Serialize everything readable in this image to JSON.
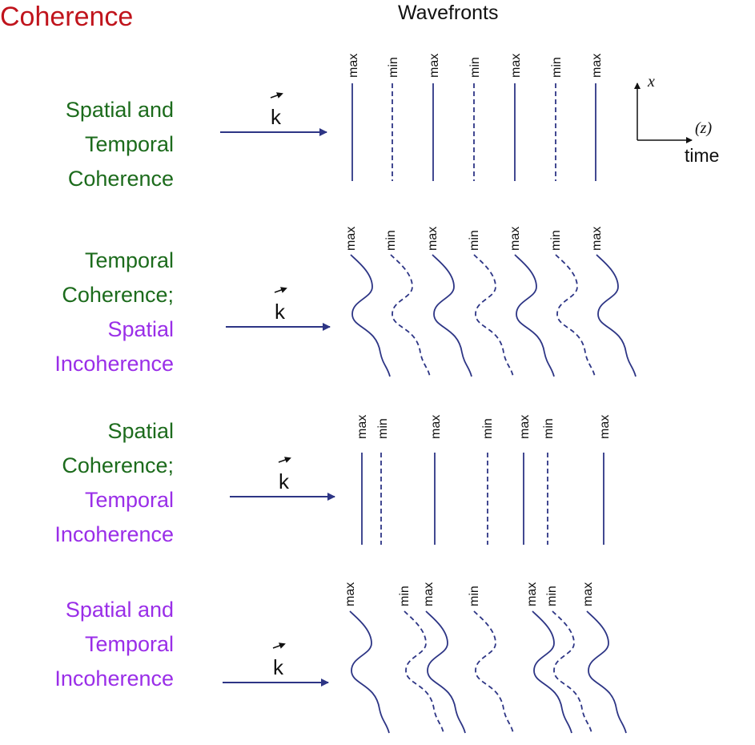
{
  "title": "Coherence",
  "wavefronts_title": "Wavefronts",
  "k_symbol": "k",
  "colors": {
    "title": "#c0141c",
    "coherent": "#1c6b1c",
    "incoherent": "#9a2ee8",
    "wave": "#2d3585"
  },
  "axes": {
    "x": "x",
    "z": "(z)",
    "time": "time"
  },
  "rows": [
    {
      "lines": [
        {
          "text": "Spatial and",
          "tone": "coherent"
        },
        {
          "text": "Temporal",
          "tone": "coherent"
        },
        {
          "text": "Coherence",
          "tone": "coherent"
        }
      ],
      "wavefront_labels": [
        "max",
        "min",
        "max",
        "min",
        "max",
        "min",
        "max"
      ]
    },
    {
      "lines": [
        {
          "text": "Temporal",
          "tone": "coherent"
        },
        {
          "text": "Coherence;",
          "tone": "coherent"
        },
        {
          "text": "Spatial",
          "tone": "incoherent"
        },
        {
          "text": "Incoherence",
          "tone": "incoherent"
        }
      ],
      "wavefront_labels": [
        "max",
        "min",
        "max",
        "min",
        "max",
        "min",
        "max"
      ]
    },
    {
      "lines": [
        {
          "text": "Spatial",
          "tone": "coherent"
        },
        {
          "text": "Coherence;",
          "tone": "coherent"
        },
        {
          "text": "Temporal",
          "tone": "incoherent"
        },
        {
          "text": "Incoherence",
          "tone": "incoherent"
        }
      ],
      "wavefront_labels": [
        "max",
        "min",
        "max",
        "min",
        "max",
        "min",
        "max"
      ]
    },
    {
      "lines": [
        {
          "text": "Spatial and",
          "tone": "incoherent"
        },
        {
          "text": "Temporal",
          "tone": "incoherent"
        },
        {
          "text": "Incoherence",
          "tone": "incoherent"
        }
      ],
      "wavefront_labels": [
        "max",
        "min",
        "max",
        "min",
        "max",
        "min",
        "max"
      ]
    }
  ]
}
